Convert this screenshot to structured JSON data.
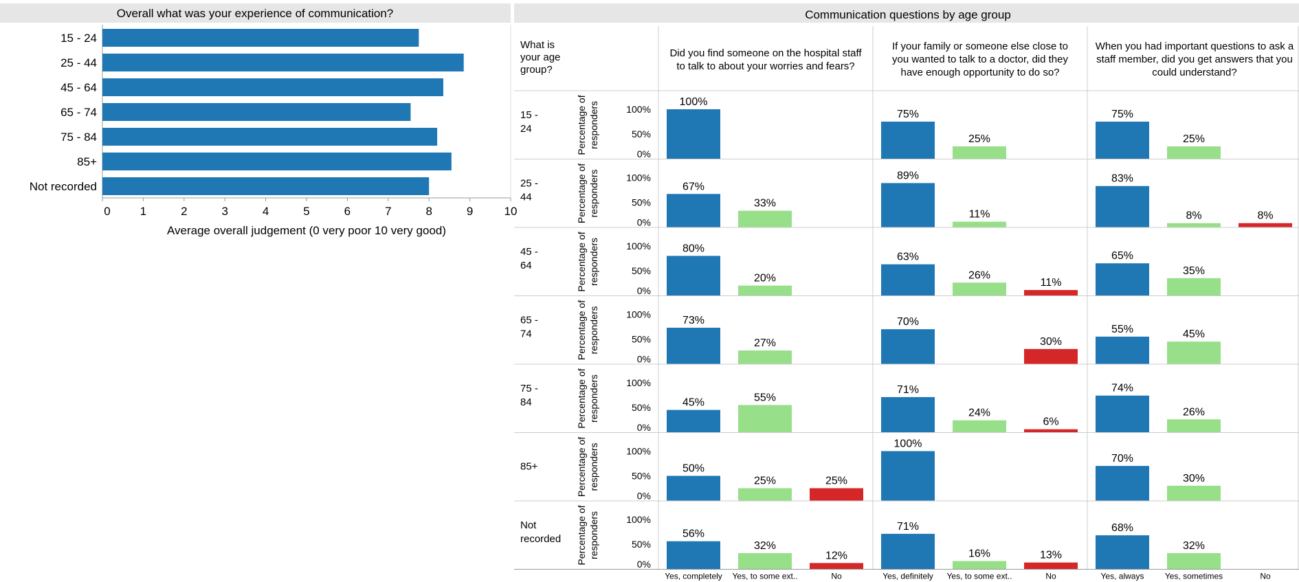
{
  "colors": {
    "blue": "#1f77b4",
    "green": "#98df8a",
    "red": "#d62728",
    "header_bg": "#e6e6e6",
    "grid": "#cccccc"
  },
  "chart_data": [
    {
      "type": "bar",
      "orientation": "horizontal",
      "title": "Overall what was your experience of communication?",
      "xlabel": "Average overall judgement (0 very poor 10 very good)",
      "ylabel": "",
      "xlim": [
        0,
        10
      ],
      "xticks": [
        "0",
        "1",
        "2",
        "3",
        "4",
        "5",
        "6",
        "7",
        "8",
        "9",
        "10"
      ],
      "categories": [
        "15 - 24",
        "25 - 44",
        "45 - 64",
        "65 - 74",
        "75 - 84",
        "85+",
        "Not recorded"
      ],
      "values": [
        7.75,
        8.85,
        8.35,
        7.55,
        8.2,
        8.55,
        8.0
      ],
      "grid": false
    },
    {
      "type": "bar",
      "title": "Communication questions by age group",
      "row_header": "What is your age group?",
      "row_axis_label": "Percentage of responders",
      "yticks": [
        "100%",
        "50%",
        "0%"
      ],
      "ylim": [
        0,
        100
      ],
      "age_groups": [
        "15 - 24",
        "25 - 44",
        "45 - 64",
        "65 - 74",
        "75 - 84",
        "85+",
        "Not recorded"
      ],
      "panels": [
        {
          "question": "Did you find someone on the hospital staff to talk to about your worries and fears?",
          "categories": [
            "Yes, completely",
            "Yes, to some ext..",
            "No"
          ],
          "values": [
            [
              100,
              null,
              null
            ],
            [
              67,
              33,
              null
            ],
            [
              80,
              20,
              null
            ],
            [
              73,
              27,
              null
            ],
            [
              45,
              55,
              null
            ],
            [
              50,
              25,
              25
            ],
            [
              56,
              32,
              12
            ]
          ],
          "labels": [
            [
              "100%",
              "",
              ""
            ],
            [
              "67%",
              "33%",
              ""
            ],
            [
              "80%",
              "20%",
              ""
            ],
            [
              "73%",
              "27%",
              ""
            ],
            [
              "45%",
              "55%",
              ""
            ],
            [
              "50%",
              "25%",
              "25%"
            ],
            [
              "56%",
              "32%",
              "12%"
            ]
          ]
        },
        {
          "question": "If your family or someone else close to you wanted to talk to a doctor, did they have enough opportunity to do so?",
          "categories": [
            "Yes, definitely",
            "Yes, to some ext..",
            "No"
          ],
          "values": [
            [
              75,
              25,
              null
            ],
            [
              89,
              11,
              null
            ],
            [
              63,
              26,
              11
            ],
            [
              70,
              null,
              30
            ],
            [
              71,
              24,
              6
            ],
            [
              100,
              null,
              null
            ],
            [
              71,
              16,
              13
            ]
          ],
          "labels": [
            [
              "75%",
              "25%",
              ""
            ],
            [
              "89%",
              "11%",
              ""
            ],
            [
              "63%",
              "26%",
              "11%"
            ],
            [
              "70%",
              "",
              "30%"
            ],
            [
              "71%",
              "24%",
              "6%"
            ],
            [
              "100%",
              "",
              ""
            ],
            [
              "71%",
              "16%",
              "13%"
            ]
          ]
        },
        {
          "question": "When you had important questions to ask a staff member, did you get answers that you could understand?",
          "categories": [
            "Yes, always",
            "Yes, sometimes",
            "No"
          ],
          "values": [
            [
              75,
              25,
              null
            ],
            [
              83,
              8,
              8
            ],
            [
              65,
              35,
              null
            ],
            [
              55,
              45,
              null
            ],
            [
              74,
              26,
              null
            ],
            [
              70,
              30,
              null
            ],
            [
              68,
              32,
              null
            ]
          ],
          "labels": [
            [
              "75%",
              "25%",
              ""
            ],
            [
              "83%",
              "8%",
              "8%"
            ],
            [
              "65%",
              "35%",
              ""
            ],
            [
              "55%",
              "45%",
              ""
            ],
            [
              "74%",
              "26%",
              ""
            ],
            [
              "70%",
              "30%",
              ""
            ],
            [
              "68%",
              "32%",
              ""
            ]
          ]
        }
      ]
    }
  ]
}
